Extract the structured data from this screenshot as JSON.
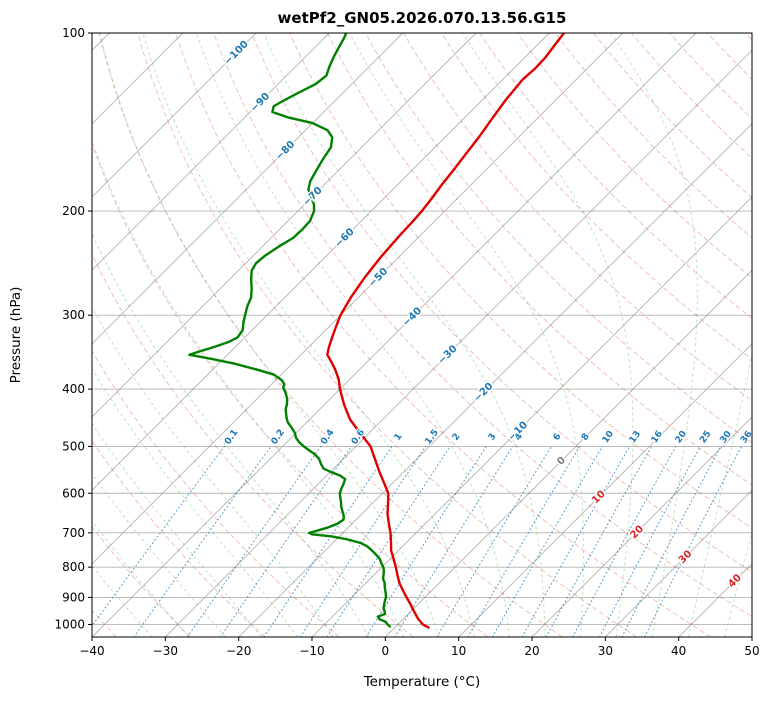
{
  "chart_data": {
    "type": "line",
    "subtype": "skewt_log_p_sounding",
    "title": "wetPf2_GN05.2026.070.13.56.G15",
    "xlabel": "Temperature (°C)",
    "ylabel": "Pressure (hPa)",
    "xlim": [
      -40,
      50
    ],
    "plim": [
      100,
      1050
    ],
    "skew": "45deg",
    "x_tick_values": [
      -40,
      -30,
      -20,
      -10,
      0,
      10,
      20,
      30,
      40,
      50
    ],
    "x_tick_labels": [
      "−40",
      "−30",
      "−20",
      "−10",
      "0",
      "10",
      "20",
      "30",
      "40",
      "50"
    ],
    "y_tick_values": [
      100,
      200,
      300,
      400,
      500,
      600,
      700,
      800,
      900,
      1000
    ],
    "grid": {
      "isotherm_step": 10,
      "isotherm_color": "#8a8a8a",
      "isobar_color": "#8a8a8a",
      "dry_adiabats": {
        "theta_start": -40,
        "theta_end": 200,
        "step": 10,
        "color": "#d62728"
      },
      "moist_adiabats": {
        "t_start": -35,
        "t_end": 45,
        "step": 5,
        "color": "#2ca02c"
      },
      "mixing_ratio": {
        "values": [
          0.1,
          0.2,
          0.4,
          0.6,
          1,
          1.5,
          2,
          3,
          4,
          6,
          8,
          10,
          13,
          16,
          20,
          25,
          30,
          36
        ],
        "color": "#1f77b4",
        "top_p": 500,
        "label_p": 482
      }
    },
    "isotherm_labels": [
      {
        "text": "−100",
        "t": -100,
        "p": 108,
        "color": "#1f77b4"
      },
      {
        "text": "−90",
        "t": -90,
        "p": 131,
        "color": "#1f77b4"
      },
      {
        "text": "−80",
        "t": -80,
        "p": 158,
        "color": "#1f77b4"
      },
      {
        "text": "−70",
        "t": -70,
        "p": 189,
        "color": "#1f77b4"
      },
      {
        "text": "−60",
        "t": -60,
        "p": 222,
        "color": "#1f77b4"
      },
      {
        "text": "−50",
        "t": -50,
        "p": 259,
        "color": "#1f77b4"
      },
      {
        "text": "−40",
        "t": -40,
        "p": 302,
        "color": "#1f77b4"
      },
      {
        "text": "−30",
        "t": -30,
        "p": 350,
        "color": "#1f77b4"
      },
      {
        "text": "−20",
        "t": -20,
        "p": 405,
        "color": "#1f77b4"
      },
      {
        "text": "−10",
        "t": -10,
        "p": 471,
        "color": "#1f77b4"
      },
      {
        "text": "0",
        "t": 0,
        "p": 529,
        "color": "#808080"
      },
      {
        "text": "10",
        "t": 10,
        "p": 609,
        "color": "#d62728"
      },
      {
        "text": "20",
        "t": 20,
        "p": 698,
        "color": "#d62728"
      },
      {
        "text": "30",
        "t": 30,
        "p": 769,
        "color": "#d62728"
      },
      {
        "text": "40",
        "t": 40,
        "p": 844,
        "color": "#d62728"
      }
    ],
    "series": [
      {
        "name": "temperature",
        "color": "#e00000",
        "width": 2.4,
        "points": [
          [
            1012,
            4.6
          ],
          [
            1000,
            3.4
          ],
          [
            975,
            1.8
          ],
          [
            950,
            0.4
          ],
          [
            925,
            -1.0
          ],
          [
            900,
            -2.5
          ],
          [
            875,
            -4.0
          ],
          [
            850,
            -5.5
          ],
          [
            825,
            -6.8
          ],
          [
            800,
            -8.1
          ],
          [
            775,
            -9.5
          ],
          [
            750,
            -11.0
          ],
          [
            725,
            -12.2
          ],
          [
            700,
            -13.5
          ],
          [
            675,
            -15.0
          ],
          [
            650,
            -16.5
          ],
          [
            625,
            -17.8
          ],
          [
            600,
            -19.2
          ],
          [
            575,
            -21.3
          ],
          [
            550,
            -23.5
          ],
          [
            525,
            -25.7
          ],
          [
            500,
            -28.0
          ],
          [
            475,
            -31.2
          ],
          [
            450,
            -34.5
          ],
          [
            425,
            -37.3
          ],
          [
            400,
            -40.0
          ],
          [
            385,
            -41.5
          ],
          [
            370,
            -43.4
          ],
          [
            355,
            -45.6
          ],
          [
            350,
            -46.4
          ],
          [
            340,
            -47.2
          ],
          [
            330,
            -47.9
          ],
          [
            320,
            -48.6
          ],
          [
            310,
            -49.3
          ],
          [
            300,
            -50.0
          ],
          [
            290,
            -50.5
          ],
          [
            280,
            -51.0
          ],
          [
            270,
            -51.4
          ],
          [
            260,
            -51.8
          ],
          [
            250,
            -52.1
          ],
          [
            240,
            -52.4
          ],
          [
            230,
            -52.6
          ],
          [
            220,
            -52.8
          ],
          [
            210,
            -52.9
          ],
          [
            200,
            -53.1
          ],
          [
            190,
            -53.5
          ],
          [
            180,
            -54.0
          ],
          [
            170,
            -54.4
          ],
          [
            160,
            -54.9
          ],
          [
            150,
            -55.4
          ],
          [
            140,
            -56.1
          ],
          [
            130,
            -56.8
          ],
          [
            120,
            -57.3
          ],
          [
            115,
            -57.1
          ],
          [
            110,
            -57.2
          ],
          [
            105,
            -57.6
          ],
          [
            100,
            -58.0
          ]
        ]
      },
      {
        "name": "dewpoint",
        "color": "#008000",
        "width": 2.4,
        "points": [
          [
            1008,
            -0.8
          ],
          [
            1000,
            -1.4
          ],
          [
            990,
            -2.0
          ],
          [
            980,
            -3.2
          ],
          [
            970,
            -3.8
          ],
          [
            960,
            -3.2
          ],
          [
            950,
            -3.6
          ],
          [
            938,
            -4.2
          ],
          [
            925,
            -4.6
          ],
          [
            912,
            -5.0
          ],
          [
            900,
            -5.3
          ],
          [
            888,
            -5.8
          ],
          [
            875,
            -6.4
          ],
          [
            862,
            -7.0
          ],
          [
            850,
            -7.5
          ],
          [
            838,
            -8.2
          ],
          [
            825,
            -8.7
          ],
          [
            812,
            -9.2
          ],
          [
            800,
            -9.8
          ],
          [
            788,
            -10.6
          ],
          [
            775,
            -11.4
          ],
          [
            762,
            -12.5
          ],
          [
            750,
            -13.6
          ],
          [
            738,
            -14.8
          ],
          [
            728,
            -16.2
          ],
          [
            718,
            -18.5
          ],
          [
            710,
            -21.0
          ],
          [
            704,
            -24.0
          ],
          [
            700,
            -24.6
          ],
          [
            694,
            -23.8
          ],
          [
            686,
            -22.8
          ],
          [
            676,
            -22.0
          ],
          [
            665,
            -21.7
          ],
          [
            655,
            -22.2
          ],
          [
            645,
            -22.9
          ],
          [
            632,
            -23.8
          ],
          [
            620,
            -24.5
          ],
          [
            608,
            -25.3
          ],
          [
            600,
            -25.8
          ],
          [
            590,
            -26.2
          ],
          [
            578,
            -26.6
          ],
          [
            568,
            -27.0
          ],
          [
            560,
            -28.2
          ],
          [
            552,
            -30.0
          ],
          [
            545,
            -31.4
          ],
          [
            535,
            -32.4
          ],
          [
            525,
            -33.3
          ],
          [
            515,
            -34.6
          ],
          [
            508,
            -35.8
          ],
          [
            500,
            -37.1
          ],
          [
            492,
            -38.3
          ],
          [
            483,
            -39.4
          ],
          [
            475,
            -40.1
          ],
          [
            465,
            -41.3
          ],
          [
            455,
            -42.6
          ],
          [
            448,
            -43.3
          ],
          [
            440,
            -44.0
          ],
          [
            432,
            -44.7
          ],
          [
            425,
            -45.1
          ],
          [
            415,
            -45.9
          ],
          [
            405,
            -47.0
          ],
          [
            398,
            -47.9
          ],
          [
            392,
            -48.3
          ],
          [
            386,
            -49.2
          ],
          [
            378,
            -51.0
          ],
          [
            370,
            -54.3
          ],
          [
            362,
            -58.0
          ],
          [
            355,
            -62.0
          ],
          [
            350,
            -65.2
          ],
          [
            345,
            -64.2
          ],
          [
            340,
            -63.0
          ],
          [
            333,
            -61.6
          ],
          [
            327,
            -61.0
          ],
          [
            318,
            -61.3
          ],
          [
            308,
            -62.3
          ],
          [
            300,
            -63.0
          ],
          [
            290,
            -63.9
          ],
          [
            280,
            -64.6
          ],
          [
            270,
            -65.8
          ],
          [
            260,
            -67.2
          ],
          [
            252,
            -68.2
          ],
          [
            245,
            -68.6
          ],
          [
            238,
            -68.4
          ],
          [
            230,
            -67.8
          ],
          [
            222,
            -67.0
          ],
          [
            215,
            -66.9
          ],
          [
            208,
            -67.0
          ],
          [
            200,
            -67.8
          ],
          [
            195,
            -68.7
          ],
          [
            189,
            -70.2
          ],
          [
            184,
            -71.5
          ],
          [
            178,
            -72.4
          ],
          [
            170,
            -73.1
          ],
          [
            163,
            -73.7
          ],
          [
            156,
            -74.2
          ],
          [
            150,
            -75.4
          ],
          [
            146,
            -77.0
          ],
          [
            142,
            -80.0
          ],
          [
            139,
            -84.0
          ],
          [
            136,
            -87.0
          ],
          [
            133,
            -87.6
          ],
          [
            130,
            -87.0
          ],
          [
            126,
            -86.0
          ],
          [
            122,
            -84.9
          ],
          [
            118,
            -84.6
          ],
          [
            114,
            -85.4
          ],
          [
            110,
            -86.1
          ],
          [
            106,
            -86.7
          ],
          [
            102,
            -87.3
          ],
          [
            100,
            -87.7
          ]
        ]
      }
    ]
  }
}
